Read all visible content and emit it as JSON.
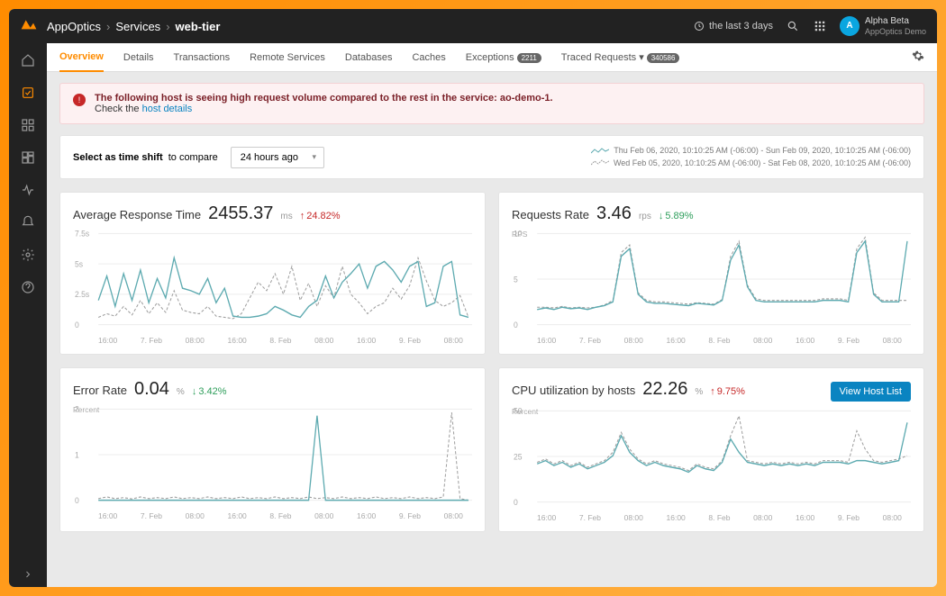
{
  "breadcrumb": {
    "root": "AppOptics",
    "mid": "Services",
    "current": "web-tier"
  },
  "timeRange": "the last 3 days",
  "user": {
    "initials": "A",
    "name": "Alpha Beta",
    "org": "AppOptics Demo"
  },
  "tabs": {
    "overview": "Overview",
    "details": "Details",
    "transactions": "Transactions",
    "remote": "Remote Services",
    "databases": "Databases",
    "caches": "Caches",
    "exceptions": "Exceptions",
    "exceptions_badge": "2211",
    "traced": "Traced Requests",
    "traced_badge": "340586"
  },
  "alert": {
    "line1": "The following host is seeing high request volume compared to the rest in the service: ao-demo-1.",
    "line2a": "Check the ",
    "line2b": "host details"
  },
  "compare": {
    "labelBold": "Select as time shift",
    "labelRest": " to compare",
    "selected": "24 hours ago"
  },
  "legend": {
    "line1": "Thu Feb 06, 2020, 10:10:25 AM (-06:00) - Sun Feb 09, 2020, 10:10:25 AM (-06:00)",
    "line2": "Wed Feb 05, 2020, 10:10:25 AM (-06:00) - Sat Feb 08, 2020, 10:10:25 AM (-06:00)"
  },
  "colors": {
    "lineCurrent": "#5daab0",
    "lineCompare": "#9e9e9e",
    "grid": "#eeeeee",
    "text": "#333333",
    "up": "#c62828",
    "down": "#2e9e5b"
  },
  "xlabels": [
    "16:00",
    "7. Feb",
    "08:00",
    "16:00",
    "8. Feb",
    "08:00",
    "16:00",
    "9. Feb",
    "08:00"
  ],
  "charts": {
    "art": {
      "title": "Average Response Time",
      "value": "2455.37",
      "unit": "ms",
      "delta_dir": "up",
      "delta": "24.82%",
      "ylabel": "",
      "yticks": [
        "7.5s",
        "5s",
        "2.5s",
        "0"
      ],
      "ymax": 7500,
      "current": [
        2000,
        4000,
        1500,
        4200,
        2000,
        4500,
        1800,
        3800,
        2200,
        5500,
        3000,
        2800,
        2500,
        3800,
        1800,
        3000,
        700,
        600,
        600,
        700,
        900,
        1500,
        1200,
        800,
        600,
        1500,
        2000,
        4000,
        2200,
        3500,
        4200,
        5000,
        3000,
        4800,
        5200,
        4500,
        3500,
        4800,
        5200,
        1500,
        1800,
        4800,
        5200,
        800,
        600
      ],
      "compare": [
        600,
        900,
        700,
        1500,
        800,
        2000,
        900,
        1800,
        1000,
        2800,
        1200,
        1000,
        900,
        1500,
        700,
        600,
        500,
        900,
        2200,
        3500,
        2800,
        4200,
        2500,
        4800,
        2000,
        3400,
        1500,
        3200,
        2200,
        4800,
        2500,
        1800,
        900,
        1500,
        1800,
        3000,
        2100,
        3200,
        5500,
        3600,
        2000,
        1500,
        1800,
        2400,
        600
      ]
    },
    "rr": {
      "title": "Requests Rate",
      "value": "3.46",
      "unit": "rps",
      "delta_dir": "down",
      "delta": "5.89%",
      "ylabel": "RPS",
      "yticks": [
        "10",
        "5",
        "0"
      ],
      "ymax": 12,
      "current": [
        2,
        2.2,
        2,
        2.3,
        2.1,
        2.2,
        2,
        2.3,
        2.5,
        3,
        9,
        10,
        4,
        3,
        2.8,
        2.8,
        2.7,
        2.6,
        2.5,
        2.8,
        2.7,
        2.6,
        3.2,
        8.5,
        10.5,
        5,
        3.2,
        3,
        3,
        3,
        3,
        3,
        3,
        3,
        3.2,
        3.2,
        3.2,
        3,
        9.5,
        11,
        4,
        3,
        3,
        3,
        11
      ],
      "compare": [
        2.3,
        2.3,
        2.2,
        2.4,
        2.2,
        2.3,
        2.2,
        2.3,
        2.6,
        3.2,
        9.5,
        10.5,
        4.2,
        3.2,
        3,
        3,
        2.9,
        2.8,
        2.7,
        2.9,
        2.8,
        2.7,
        3.3,
        9,
        11,
        5.2,
        3.4,
        3.2,
        3.2,
        3.2,
        3.2,
        3.2,
        3.2,
        3.2,
        3.4,
        3.4,
        3.4,
        3.2,
        10,
        11.5,
        4.2,
        3.2,
        3.2,
        3.2,
        3.2
      ]
    },
    "er": {
      "title": "Error Rate",
      "value": "0.04",
      "unit": "%",
      "delta_dir": "down",
      "delta": "3.42%",
      "ylabel": "Percent",
      "yticks": [
        "2",
        "1",
        "0"
      ],
      "ymax": 2.8,
      "current": [
        0,
        0,
        0,
        0,
        0,
        0,
        0,
        0,
        0,
        0,
        0,
        0,
        0,
        0,
        0,
        0,
        0,
        0,
        0,
        0,
        0,
        0,
        0,
        0,
        0,
        0,
        2.6,
        0,
        0,
        0,
        0,
        0,
        0,
        0,
        0,
        0,
        0,
        0,
        0,
        0,
        0,
        0,
        0,
        0,
        0
      ],
      "compare": [
        0.05,
        0.1,
        0.05,
        0.08,
        0.04,
        0.1,
        0.05,
        0.08,
        0.05,
        0.1,
        0.05,
        0.08,
        0.05,
        0.1,
        0.05,
        0.08,
        0.05,
        0.1,
        0.05,
        0.08,
        0.05,
        0.1,
        0.05,
        0.08,
        0.05,
        0.1,
        0.05,
        0.08,
        0.05,
        0.1,
        0.05,
        0.08,
        0.05,
        0.1,
        0.05,
        0.08,
        0.05,
        0.1,
        0.05,
        0.08,
        0.05,
        0.1,
        2.7,
        0.05,
        0
      ]
    },
    "cpu": {
      "title": "CPU utilization by hosts",
      "value": "22.26",
      "unit": "%",
      "delta_dir": "up",
      "delta": "9.75%",
      "ylabel": "Percent",
      "button": "View Host List",
      "yticks": [
        "50",
        "25",
        "0"
      ],
      "ymax": 55,
      "current": [
        23,
        25,
        22,
        24,
        21,
        23,
        20,
        22,
        24,
        28,
        40,
        30,
        25,
        22,
        24,
        22,
        21,
        20,
        18,
        22,
        20,
        19,
        24,
        38,
        30,
        24,
        23,
        22,
        23,
        22,
        23,
        22,
        23,
        22,
        24,
        24,
        24,
        23,
        25,
        25,
        24,
        23,
        24,
        25,
        48
      ],
      "compare": [
        24,
        26,
        23,
        25,
        22,
        24,
        21,
        23,
        25,
        30,
        42,
        32,
        26,
        23,
        25,
        23,
        22,
        21,
        19,
        23,
        21,
        20,
        25,
        40,
        52,
        25,
        24,
        23,
        24,
        23,
        24,
        23,
        24,
        23,
        25,
        25,
        25,
        24,
        43,
        32,
        25,
        24,
        25,
        26,
        28
      ]
    }
  }
}
